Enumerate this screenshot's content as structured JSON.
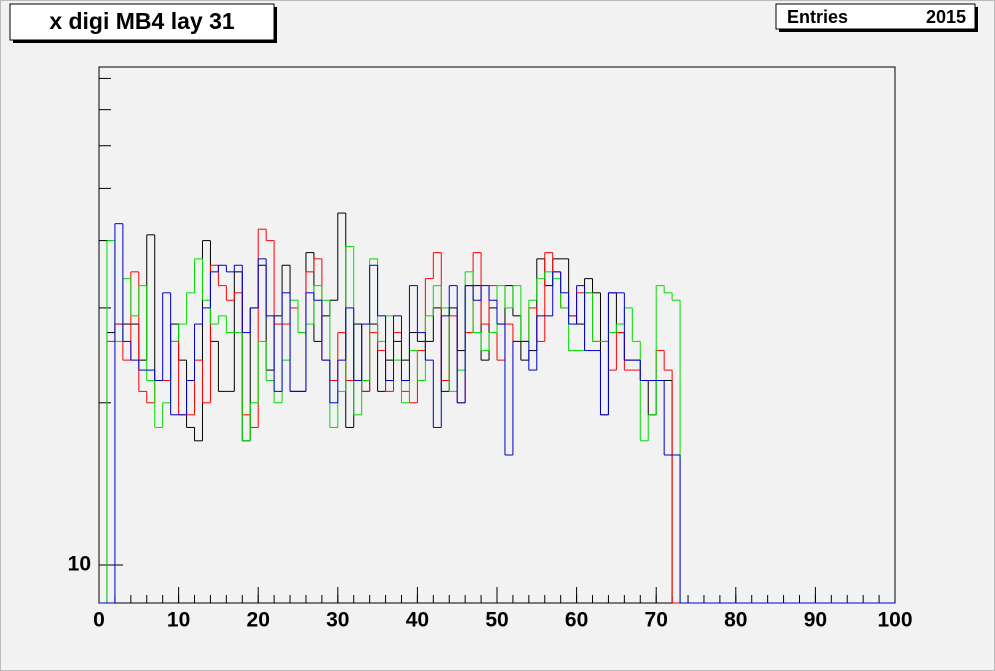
{
  "chart_data": {
    "type": "histogram",
    "title": "x digi MB4 lay 31",
    "stats": {
      "label": "Entries",
      "value": 2015
    },
    "log_y": true,
    "xlim": [
      0,
      100
    ],
    "xticks": [
      0,
      10,
      20,
      30,
      40,
      50,
      60,
      70,
      80,
      90,
      100
    ],
    "ylim": [
      8.5,
      84
    ],
    "yticks": [
      10
    ],
    "yminor_ticks": [
      20,
      30,
      40,
      50,
      60,
      70,
      80
    ],
    "bins": [
      0,
      1,
      2,
      3,
      4,
      5,
      6,
      7,
      8,
      9,
      10,
      11,
      12,
      13,
      14,
      15,
      16,
      17,
      18,
      19,
      20,
      21,
      22,
      23,
      24,
      25,
      26,
      27,
      28,
      29,
      30,
      31,
      32,
      33,
      34,
      35,
      36,
      37,
      38,
      39,
      40,
      41,
      42,
      43,
      44,
      45,
      46,
      47,
      48,
      49,
      50,
      51,
      52,
      53,
      54,
      55,
      56,
      57,
      58,
      59,
      60,
      61,
      62,
      63,
      64,
      65,
      66,
      67,
      68,
      69,
      70,
      71,
      72,
      73,
      74,
      75,
      76,
      77,
      78,
      79,
      80,
      81,
      82,
      83,
      84,
      85,
      86,
      87,
      88,
      89,
      90,
      91,
      92,
      93,
      94,
      95,
      96,
      97,
      98,
      99,
      100
    ],
    "series": [
      {
        "color": "#000000",
        "values": [
          0,
          27,
          28,
          28,
          28,
          24,
          41,
          22,
          22,
          28,
          24,
          18,
          17,
          40,
          26,
          21,
          21,
          35,
          17,
          30,
          36,
          23,
          29,
          36,
          21,
          21,
          38,
          26,
          29,
          31,
          45,
          18,
          28,
          21,
          28,
          21,
          24,
          26,
          24,
          27,
          26,
          26,
          30,
          21,
          30,
          25,
          33,
          33,
          24,
          30,
          28,
          33,
          29,
          24,
          25,
          37,
          33,
          37,
          37,
          29,
          28,
          34,
          32,
          19,
          32,
          27,
          24,
          24,
          22,
          19,
          22,
          22,
          0,
          0,
          0,
          0,
          0,
          0,
          0,
          0,
          0,
          0,
          0,
          0,
          0,
          0,
          0,
          0,
          0,
          0,
          0,
          0,
          0,
          0,
          0,
          0,
          0,
          0,
          0,
          0
        ]
      },
      {
        "color": "#ff0000",
        "values": [
          0,
          26,
          28,
          24,
          35,
          21,
          20,
          22,
          22,
          26,
          19,
          19,
          24,
          20,
          36,
          33,
          31,
          32,
          19,
          18,
          42,
          40,
          28,
          28,
          30,
          27,
          35,
          37,
          24,
          22,
          27,
          22,
          22,
          21,
          27,
          25,
          21,
          27,
          21,
          20,
          25,
          34,
          38,
          22,
          29,
          20,
          27,
          38,
          28,
          33,
          24,
          28,
          26,
          26,
          30,
          26,
          38,
          35,
          30,
          29,
          32,
          32,
          26,
          26,
          23,
          27,
          23,
          23,
          22,
          22,
          25,
          23,
          0,
          0,
          0,
          0,
          0,
          0,
          0,
          0,
          0,
          0,
          0,
          0,
          0,
          0,
          0,
          0,
          0,
          0,
          0,
          0,
          0,
          0,
          0,
          0,
          0,
          0,
          0,
          0
        ]
      },
      {
        "color": "#00dd00",
        "values": [
          0,
          40,
          26,
          34,
          29,
          33,
          22,
          18,
          20,
          26,
          28,
          32,
          37,
          31,
          28,
          29,
          27,
          27,
          17,
          20,
          26,
          22,
          20,
          24,
          31,
          27,
          28,
          33,
          31,
          18,
          21,
          39,
          19,
          22,
          37,
          26,
          29,
          24,
          20,
          25,
          22,
          29,
          33,
          30,
          21,
          23,
          35,
          27,
          25,
          27,
          33,
          30,
          33,
          26,
          31,
          34,
          35,
          34,
          30,
          25,
          25,
          32,
          26,
          26,
          27,
          28,
          30,
          26,
          17,
          19,
          33,
          32,
          31,
          0,
          0,
          0,
          0,
          0,
          0,
          0,
          0,
          0,
          0,
          0,
          0,
          0,
          0,
          0,
          0,
          0,
          0,
          0,
          0,
          0,
          0,
          0,
          0,
          0,
          0,
          0
        ]
      },
      {
        "color": "#0000cc",
        "values": [
          0,
          0,
          43,
          26,
          24,
          23,
          23,
          22,
          32,
          19,
          19,
          22,
          28,
          30,
          35,
          36,
          35,
          36,
          27,
          30,
          37,
          29,
          21,
          32,
          21,
          21,
          32,
          31,
          24,
          20,
          24,
          30,
          22,
          28,
          36,
          29,
          22,
          29,
          22,
          33,
          27,
          24,
          18,
          29,
          33,
          20,
          33,
          31,
          33,
          31,
          28,
          16,
          26,
          26,
          23,
          29,
          29,
          35,
          32,
          28,
          33,
          25,
          25,
          19,
          32,
          32,
          24,
          24,
          22,
          22,
          22,
          16,
          16,
          0,
          0,
          0,
          0,
          0,
          0,
          0,
          0,
          0,
          0,
          0,
          0,
          0,
          0,
          0,
          0,
          0,
          0,
          0,
          0,
          0,
          0,
          0,
          0,
          0,
          0,
          0
        ]
      }
    ]
  }
}
